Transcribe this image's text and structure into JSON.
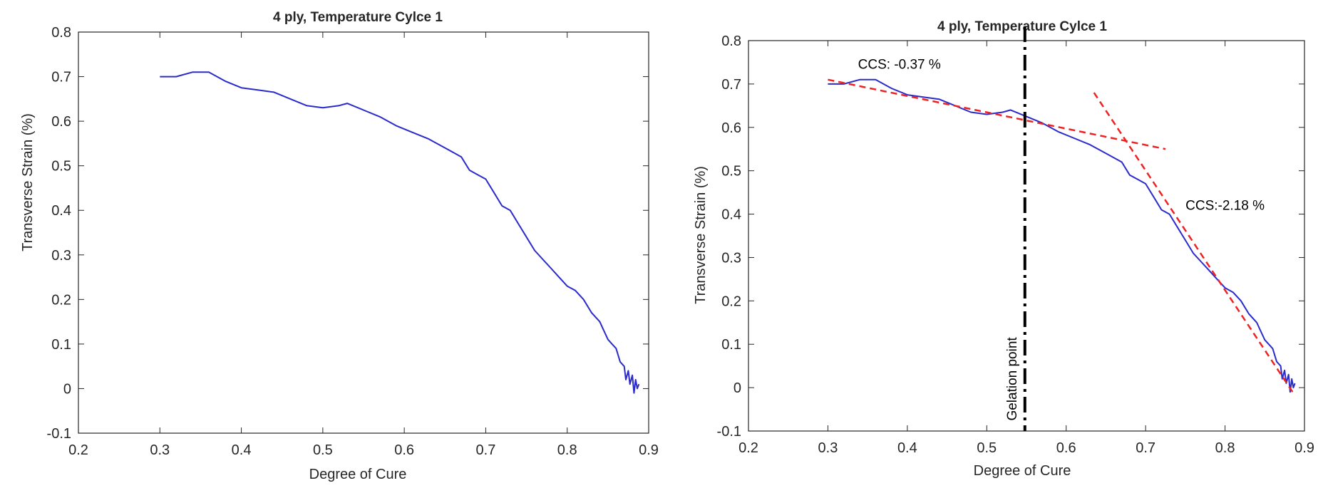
{
  "chart_data": [
    {
      "type": "line",
      "title": "4 ply, Temperature Cylce 1",
      "xlabel": "Degree of Cure",
      "ylabel": "Transverse Strain (%)",
      "xlim": [
        0.2,
        0.9
      ],
      "ylim": [
        -0.1,
        0.8
      ],
      "xticks": [
        "0.2",
        "0.3",
        "0.4",
        "0.5",
        "0.6",
        "0.7",
        "0.8",
        "0.9"
      ],
      "yticks": [
        "-0.1",
        "0",
        "0.1",
        "0.2",
        "0.3",
        "0.4",
        "0.5",
        "0.6",
        "0.7",
        "0.8"
      ],
      "grid": false,
      "series": [
        {
          "color": "#2b2bcc",
          "x": [
            0.3,
            0.32,
            0.34,
            0.36,
            0.38,
            0.4,
            0.42,
            0.44,
            0.46,
            0.48,
            0.5,
            0.52,
            0.53,
            0.55,
            0.57,
            0.59,
            0.61,
            0.63,
            0.65,
            0.67,
            0.68,
            0.69,
            0.7,
            0.71,
            0.72,
            0.73,
            0.74,
            0.75,
            0.76,
            0.77,
            0.78,
            0.79,
            0.8,
            0.81,
            0.82,
            0.83,
            0.84,
            0.845,
            0.85,
            0.855,
            0.86,
            0.865,
            0.87,
            0.872,
            0.875,
            0.877,
            0.88,
            0.882,
            0.884,
            0.886,
            0.888
          ],
          "y": [
            0.7,
            0.7,
            0.71,
            0.71,
            0.69,
            0.675,
            0.67,
            0.665,
            0.65,
            0.635,
            0.63,
            0.635,
            0.64,
            0.625,
            0.61,
            0.59,
            0.575,
            0.56,
            0.54,
            0.52,
            0.49,
            0.48,
            0.47,
            0.44,
            0.41,
            0.4,
            0.37,
            0.34,
            0.31,
            0.29,
            0.27,
            0.25,
            0.23,
            0.22,
            0.2,
            0.17,
            0.15,
            0.13,
            0.11,
            0.1,
            0.09,
            0.06,
            0.05,
            0.02,
            0.04,
            0.01,
            0.03,
            -0.01,
            0.02,
            0.0,
            0.01
          ]
        }
      ]
    },
    {
      "type": "line",
      "title": "4 ply, Temperature Cylce 1",
      "xlabel": "Degree of Cure",
      "ylabel": "Transverse Strain (%)",
      "xlim": [
        0.2,
        0.9
      ],
      "ylim": [
        -0.1,
        0.8
      ],
      "xticks": [
        "0.2",
        "0.3",
        "0.4",
        "0.5",
        "0.6",
        "0.7",
        "0.8",
        "0.9"
      ],
      "yticks": [
        "-0.1",
        "0",
        "0.1",
        "0.2",
        "0.3",
        "0.4",
        "0.5",
        "0.6",
        "0.7",
        "0.8"
      ],
      "grid": false,
      "series": [
        {
          "color": "#2b2bcc",
          "x": [
            0.3,
            0.32,
            0.34,
            0.36,
            0.38,
            0.4,
            0.42,
            0.44,
            0.46,
            0.48,
            0.5,
            0.52,
            0.53,
            0.55,
            0.57,
            0.59,
            0.61,
            0.63,
            0.65,
            0.67,
            0.68,
            0.69,
            0.7,
            0.71,
            0.72,
            0.73,
            0.74,
            0.75,
            0.76,
            0.77,
            0.78,
            0.79,
            0.8,
            0.81,
            0.82,
            0.83,
            0.84,
            0.845,
            0.85,
            0.855,
            0.86,
            0.865,
            0.87,
            0.872,
            0.875,
            0.877,
            0.88,
            0.882,
            0.884,
            0.886,
            0.888
          ],
          "y": [
            0.7,
            0.7,
            0.71,
            0.71,
            0.69,
            0.675,
            0.67,
            0.665,
            0.65,
            0.635,
            0.63,
            0.635,
            0.64,
            0.625,
            0.61,
            0.59,
            0.575,
            0.56,
            0.54,
            0.52,
            0.49,
            0.48,
            0.47,
            0.44,
            0.41,
            0.4,
            0.37,
            0.34,
            0.31,
            0.29,
            0.27,
            0.25,
            0.23,
            0.22,
            0.2,
            0.17,
            0.15,
            0.13,
            0.11,
            0.1,
            0.09,
            0.06,
            0.05,
            0.02,
            0.04,
            0.01,
            0.03,
            -0.01,
            0.02,
            0.0,
            0.01
          ]
        }
      ],
      "fit_lines": [
        {
          "color": "#ee2222",
          "x": [
            0.3,
            0.725
          ],
          "y": [
            0.71,
            0.55
          ]
        },
        {
          "color": "#ee2222",
          "x": [
            0.635,
            0.885
          ],
          "y": [
            0.68,
            -0.01
          ]
        }
      ],
      "gelation_line": {
        "x": 0.548,
        "color": "#000000",
        "label": "Gelation point"
      },
      "annotations": [
        {
          "text": "CCS: -0.37 %",
          "x": 0.39,
          "y": 0.735
        },
        {
          "text": "CCS:-2.18 %",
          "x": 0.8,
          "y": 0.41
        }
      ]
    }
  ]
}
